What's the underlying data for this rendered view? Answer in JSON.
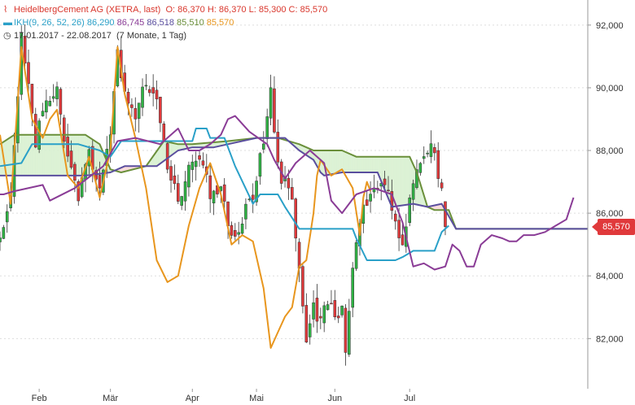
{
  "legend": {
    "instrument": "HeidelbergCement AG (XETRA, last)",
    "ohlc": "O: 86,370  H: 86,370  L: 85,300  C: 85,570",
    "ikh_label": "IKH(9, 26, 52, 26)",
    "ikh_values": [
      "86,290",
      "86,745",
      "86,518",
      "85,510",
      "85,570"
    ],
    "period": "17.01.2017 - 22.08.2017",
    "period_note": "(7 Monate, 1 Tag)"
  },
  "last_price_label": "85,570",
  "colors": {
    "up": "#2fb344",
    "down": "#e0393b",
    "tenkan": "#2aa0c8",
    "kijun": "#8a3c96",
    "senkou_a": "#6a8f3a",
    "senkou_b": "#5a4e9e",
    "chikou": "#e8961e",
    "cloud_bull": "#d8f0d0",
    "cloud_bear": "#f8d8d8",
    "grid": "#dddddd",
    "axis_text": "#333333"
  },
  "chart_data": {
    "type": "candlestick",
    "x_range": [
      0,
      165
    ],
    "ylim": [
      80400,
      92800
    ],
    "yticks": [
      82000,
      84000,
      86000,
      88000,
      90000,
      92000
    ],
    "ytick_labels": [
      "82,000",
      "84,000",
      "86,000",
      "88,000",
      "90,000",
      "92,000"
    ],
    "months": [
      {
        "label": "Feb",
        "x": 11
      },
      {
        "label": "Mär",
        "x": 31
      },
      {
        "label": "Apr",
        "x": 54
      },
      {
        "label": "Mai",
        "x": 72
      },
      {
        "label": "Jun",
        "x": 94
      },
      {
        "label": "Jul",
        "x": 115
      }
    ],
    "candle_anchors": [
      [
        0,
        85200
      ],
      [
        3,
        86800
      ],
      [
        6,
        91500
      ],
      [
        8,
        90200
      ],
      [
        10,
        88300
      ],
      [
        13,
        89500
      ],
      [
        16,
        89800
      ],
      [
        19,
        87600
      ],
      [
        22,
        86500
      ],
      [
        25,
        87800
      ],
      [
        28,
        86800
      ],
      [
        31,
        88500
      ],
      [
        33,
        91200
      ],
      [
        35,
        89800
      ],
      [
        38,
        88800
      ],
      [
        41,
        90300
      ],
      [
        44,
        89500
      ],
      [
        47,
        87500
      ],
      [
        50,
        86400
      ],
      [
        53,
        87300
      ],
      [
        56,
        87700
      ],
      [
        59,
        86700
      ],
      [
        62,
        86800
      ],
      [
        65,
        85100
      ],
      [
        68,
        85800
      ],
      [
        71,
        86600
      ],
      [
        74,
        88400
      ],
      [
        76,
        90000
      ],
      [
        78,
        87400
      ],
      [
        80,
        86900
      ],
      [
        82,
        86600
      ],
      [
        84,
        84000
      ],
      [
        86,
        82000
      ],
      [
        88,
        83000
      ],
      [
        90,
        82600
      ],
      [
        92,
        83200
      ],
      [
        94,
        82600
      ],
      [
        96,
        83200
      ],
      [
        97,
        81700
      ],
      [
        99,
        84100
      ],
      [
        101,
        85900
      ],
      [
        104,
        86600
      ],
      [
        107,
        86900
      ],
      [
        110,
        86300
      ],
      [
        113,
        85000
      ],
      [
        115,
        86600
      ],
      [
        118,
        87600
      ],
      [
        120,
        88100
      ],
      [
        122,
        88000
      ],
      [
        124,
        86600
      ],
      [
        125,
        85570
      ]
    ],
    "ichimoku": {
      "tenkan": [
        [
          0,
          87500
        ],
        [
          6,
          87600
        ],
        [
          9,
          88200
        ],
        [
          22,
          88200
        ],
        [
          28,
          88000
        ],
        [
          31,
          87800
        ],
        [
          34,
          88300
        ],
        [
          45,
          88300
        ],
        [
          48,
          88300
        ],
        [
          54,
          88300
        ],
        [
          55,
          88700
        ],
        [
          58,
          88700
        ],
        [
          59,
          88400
        ],
        [
          63,
          88400
        ],
        [
          66,
          87500
        ],
        [
          71,
          86300
        ],
        [
          73,
          86600
        ],
        [
          78,
          86600
        ],
        [
          80,
          86200
        ],
        [
          84,
          85500
        ],
        [
          99,
          85500
        ],
        [
          100,
          85200
        ],
        [
          103,
          84500
        ],
        [
          111,
          84500
        ],
        [
          113,
          84600
        ],
        [
          116,
          84800
        ],
        [
          122,
          84800
        ],
        [
          124,
          85400
        ],
        [
          126,
          85600
        ]
      ],
      "kijun": [
        [
          0,
          86600
        ],
        [
          1,
          86600
        ],
        [
          4,
          86700
        ],
        [
          12,
          86900
        ],
        [
          14,
          86400
        ],
        [
          21,
          86800
        ],
        [
          29,
          87500
        ],
        [
          33,
          88300
        ],
        [
          38,
          88400
        ],
        [
          45,
          88200
        ],
        [
          50,
          88700
        ],
        [
          53,
          88000
        ],
        [
          56,
          88000
        ],
        [
          59,
          88200
        ],
        [
          62,
          88500
        ],
        [
          64,
          89000
        ],
        [
          66,
          89100
        ],
        [
          70,
          88600
        ],
        [
          75,
          88200
        ],
        [
          77,
          87700
        ],
        [
          80,
          87100
        ],
        [
          83,
          87600
        ],
        [
          87,
          88000
        ],
        [
          91,
          87600
        ],
        [
          93,
          86400
        ],
        [
          96,
          86000
        ],
        [
          100,
          86600
        ],
        [
          105,
          86800
        ],
        [
          110,
          86600
        ],
        [
          113,
          85700
        ],
        [
          116,
          84300
        ],
        [
          119,
          84400
        ],
        [
          122,
          84200
        ],
        [
          125,
          84300
        ],
        [
          127,
          85000
        ],
        [
          129,
          84800
        ],
        [
          131,
          84300
        ],
        [
          133,
          84300
        ],
        [
          135,
          85000
        ],
        [
          138,
          85300
        ],
        [
          141,
          85200
        ],
        [
          143,
          85100
        ],
        [
          145,
          85100
        ],
        [
          147,
          85300
        ],
        [
          150,
          85300
        ],
        [
          153,
          85400
        ],
        [
          156,
          85600
        ],
        [
          159,
          85800
        ],
        [
          161,
          86500
        ]
      ],
      "senkou_a": [
        [
          0,
          88200
        ],
        [
          4,
          88500
        ],
        [
          24,
          88500
        ],
        [
          28,
          88200
        ],
        [
          31,
          87400
        ],
        [
          34,
          87300
        ],
        [
          41,
          87500
        ],
        [
          46,
          88300
        ],
        [
          50,
          88200
        ],
        [
          52,
          88200
        ],
        [
          54,
          88200
        ],
        [
          64,
          88300
        ],
        [
          72,
          88400
        ],
        [
          78,
          88400
        ],
        [
          84,
          88200
        ],
        [
          88,
          88000
        ],
        [
          96,
          88000
        ],
        [
          100,
          87800
        ],
        [
          115,
          87800
        ],
        [
          117,
          87300
        ],
        [
          120,
          86200
        ],
        [
          122,
          86100
        ],
        [
          126,
          86100
        ],
        [
          128,
          85500
        ],
        [
          145,
          85500
        ],
        [
          150,
          85500
        ],
        [
          165,
          85500
        ]
      ],
      "senkou_b": [
        [
          0,
          87200
        ],
        [
          6,
          87200
        ],
        [
          24,
          87200
        ],
        [
          31,
          87300
        ],
        [
          35,
          87500
        ],
        [
          44,
          87500
        ],
        [
          50,
          88000
        ],
        [
          54,
          88100
        ],
        [
          60,
          88100
        ],
        [
          64,
          88200
        ],
        [
          72,
          88400
        ],
        [
          80,
          88400
        ],
        [
          84,
          88000
        ],
        [
          88,
          87700
        ],
        [
          90,
          87300
        ],
        [
          91,
          87200
        ],
        [
          96,
          87300
        ],
        [
          100,
          87300
        ],
        [
          106,
          87300
        ],
        [
          110,
          86200
        ],
        [
          116,
          86300
        ],
        [
          120,
          86200
        ],
        [
          124,
          86300
        ],
        [
          128,
          85500
        ],
        [
          150,
          85500
        ],
        [
          165,
          85500
        ]
      ],
      "chikou": [
        [
          0,
          88500
        ],
        [
          3,
          86300
        ],
        [
          6,
          91300
        ],
        [
          9,
          89000
        ],
        [
          12,
          88400
        ],
        [
          14,
          89000
        ],
        [
          16,
          89300
        ],
        [
          19,
          87200
        ],
        [
          22,
          86800
        ],
        [
          25,
          87800
        ],
        [
          28,
          86500
        ],
        [
          31,
          88000
        ],
        [
          33,
          91300
        ],
        [
          35,
          89800
        ],
        [
          38,
          88400
        ],
        [
          41,
          86800
        ],
        [
          44,
          84500
        ],
        [
          47,
          83800
        ],
        [
          50,
          84000
        ],
        [
          53,
          85600
        ],
        [
          56,
          86800
        ],
        [
          59,
          87600
        ],
        [
          62,
          86600
        ],
        [
          65,
          85000
        ],
        [
          68,
          85300
        ],
        [
          71,
          85100
        ],
        [
          74,
          83600
        ],
        [
          76,
          81700
        ],
        [
          78,
          82200
        ],
        [
          80,
          82700
        ],
        [
          82,
          83000
        ],
        [
          84,
          84300
        ],
        [
          86,
          84500
        ],
        [
          88,
          86000
        ],
        [
          89,
          87200
        ],
        [
          90,
          87700
        ],
        [
          93,
          87200
        ],
        [
          96,
          87400
        ],
        [
          99,
          86800
        ],
        [
          101,
          85300
        ],
        [
          102,
          86500
        ],
        [
          103,
          87000
        ],
        [
          104,
          86700
        ]
      ]
    }
  }
}
